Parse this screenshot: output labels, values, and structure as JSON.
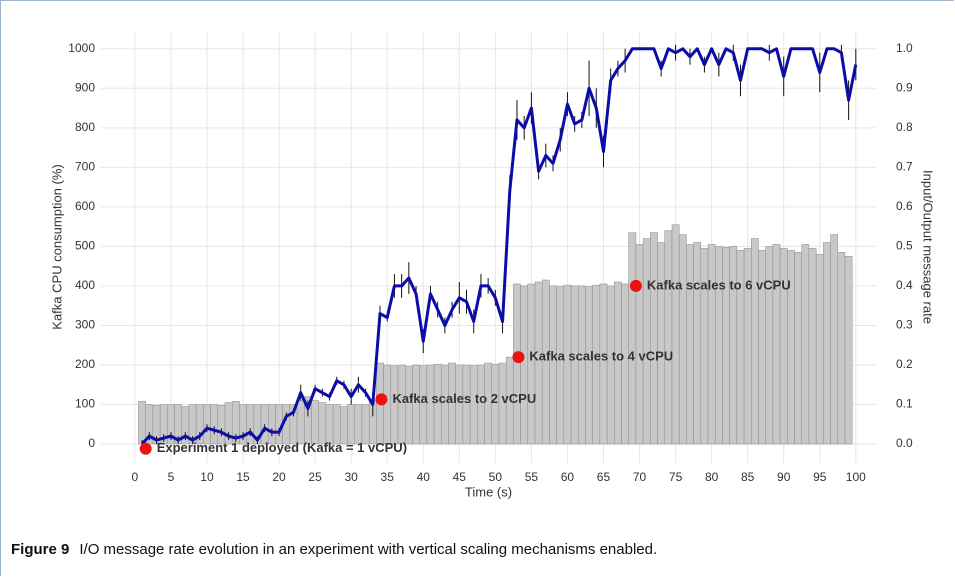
{
  "chart_data": {
    "type": "combo",
    "xlabel": "Time (s)",
    "ylabel": "Kafka CPU consumption (%)",
    "y2label": "Input/Output message rate",
    "xlim": [
      -4.7,
      102.8
    ],
    "ylim": [
      -48,
      1045
    ],
    "y2lim": [
      -0.048,
      1.045
    ],
    "xticks": [
      0,
      5,
      10,
      15,
      20,
      25,
      30,
      35,
      40,
      45,
      50,
      55,
      60,
      65,
      70,
      75,
      80,
      85,
      90,
      95,
      100
    ],
    "yticks": [
      0,
      100,
      200,
      300,
      400,
      500,
      600,
      700,
      800,
      900,
      1000
    ],
    "y2ticks": [
      {
        "value": 0,
        "label": "0.0"
      },
      0.1,
      0.2,
      0.3,
      0.4,
      0.5,
      0.6,
      0.7,
      0.8,
      0.9,
      {
        "value": 1,
        "label": "1.0"
      }
    ],
    "grid": true,
    "bars": {
      "color": "#c8c8c8",
      "edge": "#8c8c8c",
      "x": [
        1,
        2,
        3,
        4,
        5,
        6,
        7,
        8,
        9,
        10,
        11,
        12,
        13,
        14,
        15,
        16,
        17,
        18,
        19,
        20,
        21,
        22,
        23,
        24,
        25,
        26,
        27,
        28,
        29,
        30,
        31,
        32,
        33,
        34,
        35,
        36,
        37,
        38,
        39,
        40,
        41,
        42,
        43,
        44,
        45,
        46,
        47,
        48,
        49,
        50,
        51,
        52,
        53,
        54,
        55,
        56,
        57,
        58,
        59,
        60,
        61,
        62,
        63,
        64,
        65,
        66,
        67,
        68,
        69,
        70,
        71,
        72,
        73,
        74,
        75,
        76,
        77,
        78,
        79,
        80,
        81,
        82,
        83,
        84,
        85,
        86,
        87,
        88,
        89,
        90,
        91,
        92,
        93,
        94,
        95,
        96,
        97,
        98,
        99
      ],
      "values": [
        108,
        100,
        98,
        100,
        100,
        100,
        95,
        100,
        100,
        100,
        100,
        98,
        105,
        108,
        100,
        100,
        100,
        100,
        100,
        100,
        100,
        100,
        110,
        120,
        110,
        105,
        100,
        100,
        95,
        100,
        100,
        100,
        110,
        205,
        200,
        198,
        200,
        197,
        200,
        198,
        200,
        202,
        200,
        205,
        200,
        200,
        198,
        200,
        205,
        202,
        205,
        220,
        405,
        400,
        405,
        410,
        415,
        400,
        398,
        402,
        400,
        400,
        398,
        402,
        405,
        400,
        410,
        405,
        535,
        505,
        520,
        535,
        510,
        540,
        555,
        530,
        505,
        510,
        495,
        505,
        500,
        498,
        500,
        490,
        495,
        520,
        490,
        500,
        505,
        495,
        490,
        485,
        505,
        495,
        480,
        510,
        530,
        485,
        475
      ]
    },
    "line": {
      "color": "#0c0ca8",
      "axis": "y2",
      "x": [
        1,
        2,
        3,
        4,
        5,
        6,
        7,
        8,
        9,
        10,
        11,
        12,
        13,
        14,
        15,
        16,
        17,
        18,
        19,
        20,
        21,
        22,
        23,
        24,
        25,
        26,
        27,
        28,
        29,
        30,
        31,
        32,
        33,
        34,
        35,
        36,
        37,
        38,
        39,
        40,
        41,
        42,
        43,
        44,
        45,
        46,
        47,
        48,
        49,
        50,
        51,
        52,
        53,
        54,
        55,
        56,
        57,
        58,
        59,
        60,
        61,
        62,
        63,
        64,
        65,
        66,
        67,
        68,
        69,
        70,
        71,
        72,
        73,
        74,
        75,
        76,
        77,
        78,
        79,
        80,
        81,
        82,
        83,
        84,
        85,
        86,
        87,
        88,
        89,
        90,
        91,
        92,
        93,
        94,
        95,
        96,
        97,
        98,
        99,
        100
      ],
      "values": [
        0,
        0.02,
        0.01,
        0.015,
        0.02,
        0.01,
        0.02,
        0.01,
        0.02,
        0.04,
        0.035,
        0.03,
        0.02,
        0.015,
        0.02,
        0.03,
        0.01,
        0.04,
        0.03,
        0.03,
        0.07,
        0.08,
        0.13,
        0.09,
        0.14,
        0.13,
        0.12,
        0.16,
        0.15,
        0.12,
        0.15,
        0.13,
        0.1,
        0.33,
        0.32,
        0.4,
        0.4,
        0.42,
        0.38,
        0.26,
        0.38,
        0.34,
        0.3,
        0.34,
        0.37,
        0.36,
        0.31,
        0.4,
        0.4,
        0.37,
        0.31,
        0.64,
        0.82,
        0.8,
        0.85,
        0.69,
        0.73,
        0.71,
        0.77,
        0.86,
        0.81,
        0.82,
        0.9,
        0.85,
        0.74,
        0.92,
        0.95,
        0.97,
        1,
        1,
        1,
        1,
        0.95,
        1,
        0.99,
        1,
        0.98,
        1,
        0.96,
        1,
        0.96,
        1,
        0.99,
        0.92,
        1,
        1,
        1,
        0.99,
        1,
        0.93,
        1,
        1,
        1,
        1,
        0.94,
        1,
        1,
        0.99,
        0.87,
        0.96
      ],
      "errors": [
        0.01,
        0.01,
        0.01,
        0.01,
        0.01,
        0.01,
        0.01,
        0.01,
        0.01,
        0.01,
        0.01,
        0.01,
        0.01,
        0.01,
        0.01,
        0.01,
        0.01,
        0.01,
        0.01,
        0.01,
        0.01,
        0.01,
        0.02,
        0.02,
        0.01,
        0.01,
        0.01,
        0.01,
        0.01,
        0.02,
        0.02,
        0.01,
        0.03,
        0.02,
        0.01,
        0.03,
        0.03,
        0.04,
        0.02,
        0.03,
        0.02,
        0.02,
        0.02,
        0.02,
        0.04,
        0.03,
        0.03,
        0.03,
        0.02,
        0.02,
        0.03,
        0.04,
        0.05,
        0.03,
        0.04,
        0.02,
        0.03,
        0.02,
        0.03,
        0.03,
        0.02,
        0.02,
        0.07,
        0.05,
        0.04,
        0.03,
        0.02,
        0.03,
        0,
        0,
        0,
        0,
        0.02,
        0,
        0.02,
        0,
        0.02,
        0,
        0.02,
        0,
        0.03,
        0,
        0.02,
        0.04,
        0,
        0,
        0,
        0.02,
        0,
        0.05,
        0,
        0,
        0,
        0,
        0.05,
        0,
        0,
        0.02,
        0.05,
        0.04
      ]
    },
    "annotations": [
      {
        "text": "Experiment 1 deployed (Kafka = 1 vCPU)",
        "x": 1.5,
        "y": -12
      },
      {
        "text": "Kafka scales to 2 vCPU",
        "x": 34.2,
        "y": 113
      },
      {
        "text": "Kafka scales to 4 vCPU",
        "x": 53.2,
        "y": 220
      },
      {
        "text": "Kafka scales to 6 vCPU",
        "x": 69.5,
        "y": 400
      }
    ],
    "annotation_color": "#ee1111"
  },
  "caption": {
    "label": "Figure 9",
    "text": "I/O message rate evolution in an experiment with vertical scaling mechanisms enabled."
  }
}
